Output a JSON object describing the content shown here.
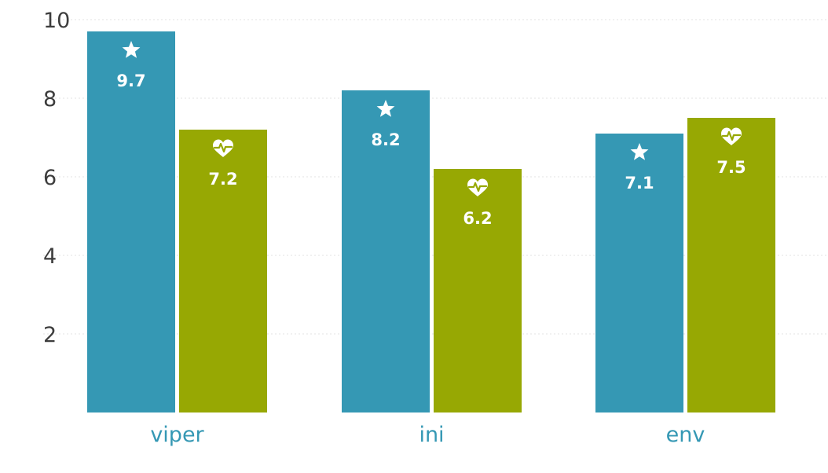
{
  "chart_data": {
    "type": "bar",
    "categories": [
      "viper",
      "ini",
      "env"
    ],
    "series": [
      {
        "values": [
          9.7,
          8.2,
          7.1
        ],
        "color": "#3598b4",
        "icon": "star-icon"
      },
      {
        "values": [
          7.2,
          6.2,
          7.5
        ],
        "color": "#97a803",
        "icon": "heartbeat-icon"
      }
    ],
    "yticks": [
      "2",
      "4",
      "6",
      "8",
      "10"
    ],
    "ylim": [
      0,
      10
    ],
    "grid": true,
    "category_label_color": "#3598b4",
    "tick_label_color": "#3d3d3d",
    "gridline_color": "#e3e3e3",
    "value_label_color": "#ffffff"
  }
}
